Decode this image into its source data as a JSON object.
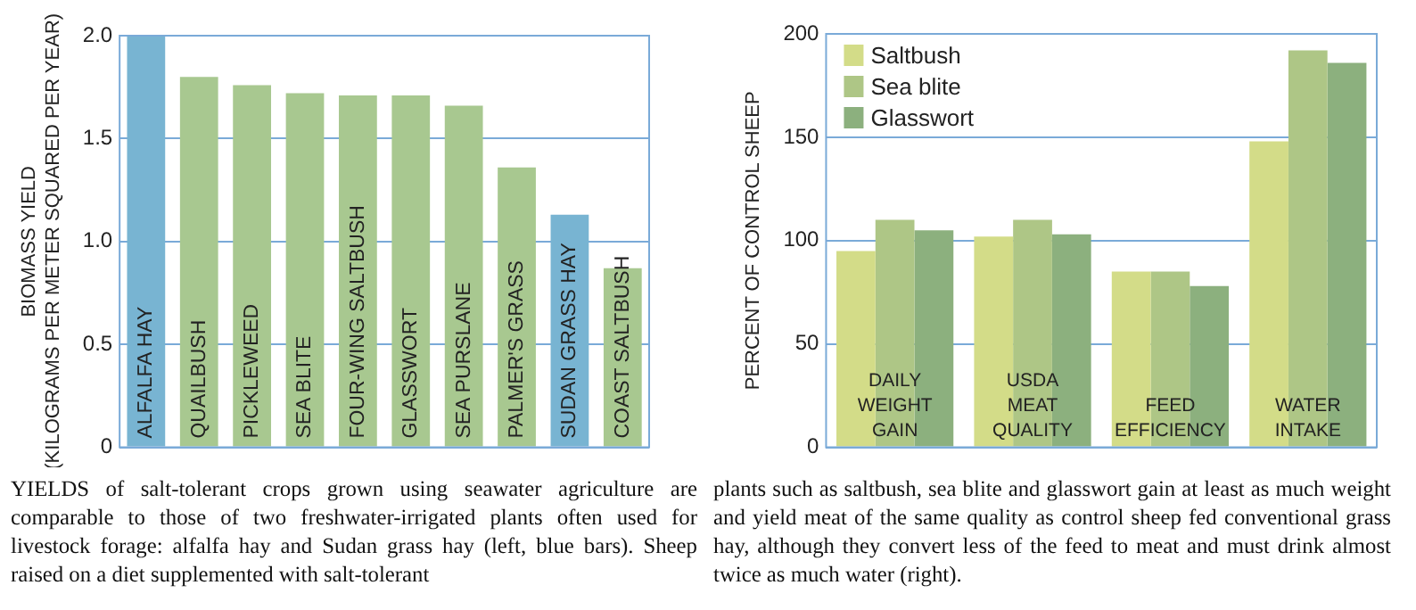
{
  "chart_data": [
    {
      "type": "bar",
      "ylabel": "BIOMASS YIELD\n(KILOGRAMS PER METER SQUARED PER YEAR)",
      "categories": [
        "ALFALFA HAY",
        "QUAILBUSH",
        "PICKLEWEED",
        "SEA BLITE",
        "FOUR-WING SALTBUSH",
        "GLASSWORT",
        "SEA PURSLANE",
        "PALMER'S GRASS",
        "SUDAN GRASS HAY",
        "COAST SALTBUSH"
      ],
      "values": [
        2.0,
        1.8,
        1.76,
        1.72,
        1.71,
        1.71,
        1.66,
        1.36,
        1.13,
        0.87
      ],
      "colors": [
        "#78b4d2",
        "#a8c890",
        "#a8c890",
        "#a8c890",
        "#a8c890",
        "#a8c890",
        "#a8c890",
        "#a8c890",
        "#78b4d2",
        "#a8c890"
      ],
      "ylim": [
        0,
        2
      ],
      "yticks": [
        0,
        {
          "value": 0.5,
          "label": "0.5"
        },
        {
          "value": 1,
          "label": "1.0"
        },
        {
          "value": 1.5,
          "label": "1.5"
        },
        {
          "value": 2,
          "label": "2.0"
        }
      ],
      "grid": "y",
      "annotations": [
        "YIELDS of salt-tolerant crops grown using seawater agriculture are comparable to those of two freshwater-irrigated plants often used for livestock forage: alfalfa hay and Sudan grass hay (left, blue bars). Sheep raised on a diet supplemented with salt-tolerant"
      ]
    },
    {
      "type": "bar",
      "ylabel": "PERCENT OF CONTROL SHEEP",
      "categories": [
        "DAILY WEIGHT GAIN",
        "USDA MEAT QUALITY",
        "FEED EFFICIENCY",
        "WATER INTAKE"
      ],
      "series": [
        {
          "name": "Saltbush",
          "color": "#d3dc88",
          "values": [
            95,
            102,
            85,
            148
          ]
        },
        {
          "name": "Sea blite",
          "color": "#aec686",
          "values": [
            110,
            110,
            85,
            192
          ]
        },
        {
          "name": "Glasswort",
          "color": "#8cb07e",
          "values": [
            105,
            103,
            78,
            186
          ]
        }
      ],
      "ylim": [
        0,
        200
      ],
      "yticks": [
        0,
        50,
        100,
        150,
        200
      ],
      "grid": "y",
      "legend": "top left",
      "annotations": [
        "plants such as saltbush, sea blite and glasswort gain at least as much weight and yield meat of the same quality as control sheep fed conventional grass hay, although they convert less of the feed to meat and must drink almost twice as much water (right)."
      ]
    }
  ]
}
